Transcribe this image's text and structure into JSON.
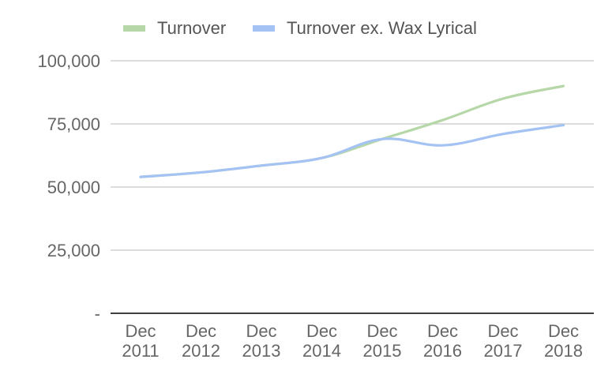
{
  "chart_data": {
    "type": "line",
    "categories": [
      [
        "Dec",
        "2011"
      ],
      [
        "Dec",
        "2012"
      ],
      [
        "Dec",
        "2013"
      ],
      [
        "Dec",
        "2014"
      ],
      [
        "Dec",
        "2015"
      ],
      [
        "Dec",
        "2016"
      ],
      [
        "Dec",
        "2017"
      ],
      [
        "Dec",
        "2018"
      ]
    ],
    "series": [
      {
        "name": "Turnover",
        "color": "#b6d7a8",
        "values": [
          54000,
          55800,
          58500,
          61500,
          69000,
          76500,
          85000,
          90000
        ]
      },
      {
        "name": "Turnover ex. Wax Lyrical",
        "color": "#a4c2f4",
        "values": [
          54000,
          55800,
          58500,
          61500,
          69000,
          66500,
          71000,
          74500
        ]
      }
    ],
    "y_ticks": [
      {
        "value": 0,
        "label": "-"
      },
      {
        "value": 25000,
        "label": "25,000"
      },
      {
        "value": 50000,
        "label": "50,000"
      },
      {
        "value": 75000,
        "label": "75,000"
      },
      {
        "value": 100000,
        "label": "100,000"
      }
    ],
    "ylim": [
      0,
      100000
    ],
    "title": "",
    "xlabel": "",
    "ylabel": "",
    "legend": {
      "position": "top-left"
    },
    "grid": true
  }
}
